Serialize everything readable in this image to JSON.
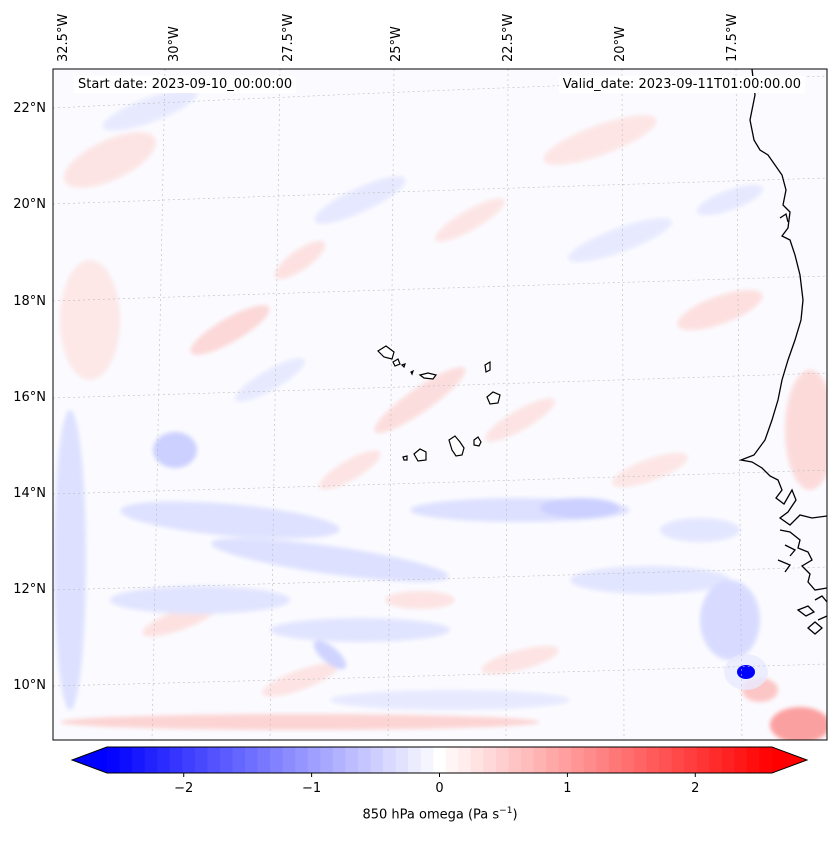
{
  "header": {
    "start_date": "Start date: 2023-09-10_00:00:00",
    "valid_date": "Valid_date: 2023-09-11T01:00:00.00"
  },
  "axes": {
    "lon_labels": [
      "32.5°W",
      "30°W",
      "27.5°W",
      "25°W",
      "22.5°W",
      "20°W",
      "17.5°W"
    ],
    "lat_labels": [
      "22°N",
      "20°N",
      "18°N",
      "16°N",
      "14°N",
      "12°N",
      "10°N"
    ]
  },
  "colorbar": {
    "label": "850 hPa omega (Pa s",
    "label_exp": "−1",
    "label_close": ")",
    "tick_labels": [
      "−2",
      "−1",
      "0",
      "1",
      "2"
    ],
    "ticks": [
      -2,
      -1,
      0,
      1,
      2
    ],
    "vmin": -2.6,
    "vmax": 2.6,
    "levels": 53,
    "colormap": "bwr",
    "low_color": "#0000ff",
    "mid_color": "#ffffff",
    "high_color": "#ff0000"
  },
  "map": {
    "projection": "lambert-conformal",
    "field": "850 hPa omega",
    "features": [
      "coastline",
      "Cape Verde islands",
      "strong upward motion cell near 10.2°N 16.8°W"
    ],
    "coast_color": "#000000",
    "grid_color": "#c8c8c8"
  }
}
